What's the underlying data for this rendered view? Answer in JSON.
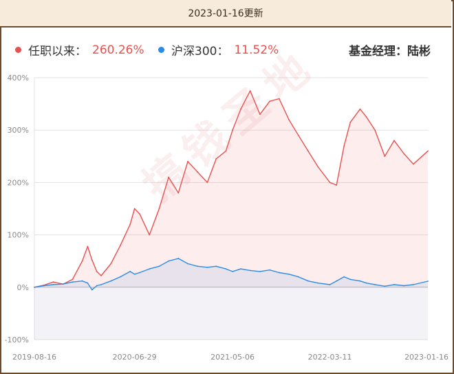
{
  "header": {
    "update_text": "2023-01-16更新"
  },
  "legend": {
    "tenure_label": "任职以来：",
    "tenure_value": "260.26%",
    "index_label": "沪深300：",
    "index_value": "11.52%",
    "manager_text": "基金经理：陆彬"
  },
  "colors": {
    "fund": "#e8504f",
    "index": "#2b8be6",
    "frame": "#6b4a2e",
    "header_bg": "#f7ecdc"
  },
  "watermark": "搞钱圣地",
  "chart_data": {
    "type": "line",
    "title": "",
    "xlabel": "",
    "ylabel": "",
    "ylim": [
      -100,
      400
    ],
    "yticks": [
      -100,
      0,
      100,
      200,
      300,
      400
    ],
    "ytick_labels": [
      "-100%",
      "0%",
      "100%",
      "200%",
      "300%",
      "400%"
    ],
    "xticks": [
      "2019-08-16",
      "2020-06-29",
      "2021-05-06",
      "2022-03-11",
      "2023-01-16"
    ],
    "x": [
      "2019-08-16",
      "2019-09-15",
      "2019-10-15",
      "2019-11-15",
      "2019-12-15",
      "2020-01-15",
      "2020-02-01",
      "2020-02-15",
      "2020-03-01",
      "2020-03-15",
      "2020-04-15",
      "2020-05-15",
      "2020-06-15",
      "2020-06-29",
      "2020-07-15",
      "2020-08-15",
      "2020-09-15",
      "2020-10-15",
      "2020-11-15",
      "2020-12-15",
      "2021-01-15",
      "2021-02-15",
      "2021-03-15",
      "2021-04-15",
      "2021-05-06",
      "2021-06-01",
      "2021-07-01",
      "2021-08-01",
      "2021-09-01",
      "2021-10-01",
      "2021-11-01",
      "2021-12-01",
      "2022-01-01",
      "2022-02-01",
      "2022-03-11",
      "2022-04-01",
      "2022-04-25",
      "2022-05-15",
      "2022-06-15",
      "2022-07-05",
      "2022-08-01",
      "2022-09-01",
      "2022-10-01",
      "2022-11-01",
      "2022-12-01",
      "2023-01-16"
    ],
    "series": [
      {
        "color": "#e8504f",
        "values": [
          0,
          4,
          10,
          6,
          15,
          50,
          78,
          52,
          30,
          22,
          45,
          80,
          120,
          150,
          140,
          100,
          150,
          210,
          180,
          240,
          220,
          200,
          245,
          260,
          300,
          340,
          375,
          330,
          355,
          360,
          320,
          290,
          260,
          230,
          200,
          195,
          270,
          315,
          340,
          325,
          300,
          250,
          280,
          255,
          235,
          260
        ]
      },
      {
        "color": "#2b8be6",
        "values": [
          0,
          3,
          5,
          6,
          10,
          12,
          8,
          -5,
          3,
          5,
          12,
          20,
          30,
          25,
          28,
          35,
          40,
          50,
          55,
          45,
          40,
          38,
          40,
          35,
          30,
          35,
          32,
          30,
          33,
          28,
          25,
          20,
          12,
          8,
          5,
          12,
          20,
          15,
          12,
          8,
          5,
          2,
          5,
          3,
          5,
          11.52
        ]
      }
    ]
  }
}
